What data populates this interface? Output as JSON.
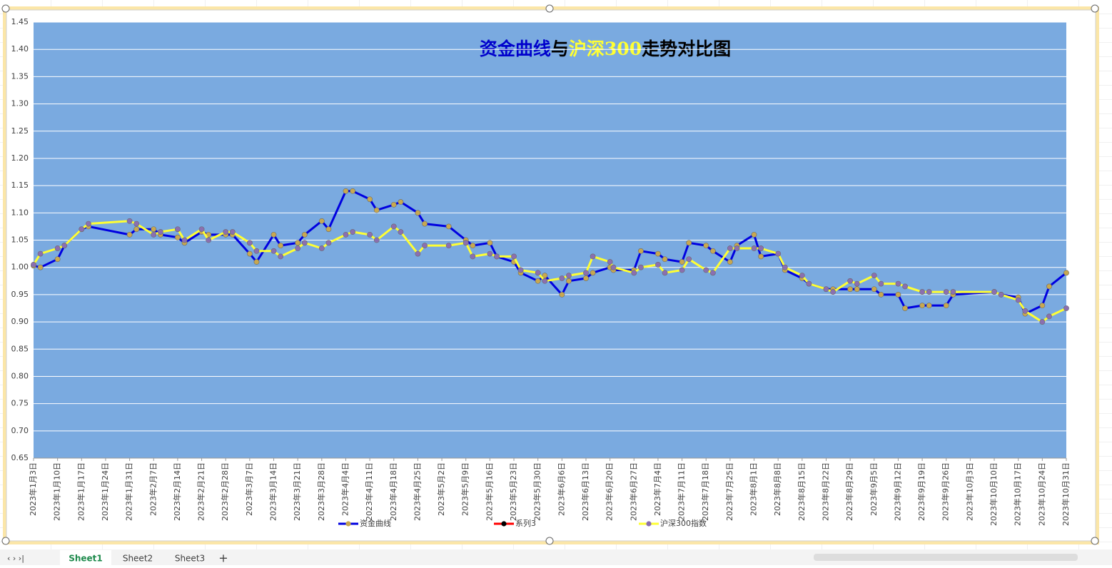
{
  "chart_data": {
    "type": "line",
    "title": [
      "资金曲线",
      "与",
      "沪深300",
      "走势对比图"
    ],
    "title_colors": [
      "#0000cc",
      "#000000",
      "#ffff33",
      "#000000"
    ],
    "x": [
      "2023-01-03",
      "2023-01-05",
      "2023-01-10",
      "2023-01-12",
      "2023-01-17",
      "2023-01-19",
      "2023-01-31",
      "2023-02-02",
      "2023-02-07",
      "2023-02-09",
      "2023-02-14",
      "2023-02-16",
      "2023-02-21",
      "2023-02-23",
      "2023-02-28",
      "2023-03-02",
      "2023-03-07",
      "2023-03-09",
      "2023-03-14",
      "2023-03-16",
      "2023-03-21",
      "2023-03-23",
      "2023-03-28",
      "2023-03-30",
      "2023-04-04",
      "2023-04-06",
      "2023-04-11",
      "2023-04-13",
      "2023-04-18",
      "2023-04-20",
      "2023-04-25",
      "2023-04-27",
      "2023-05-04",
      "2023-05-09",
      "2023-05-11",
      "2023-05-16",
      "2023-05-18",
      "2023-05-23",
      "2023-05-25",
      "2023-05-30",
      "2023-06-01",
      "2023-06-06",
      "2023-06-08",
      "2023-06-13",
      "2023-06-15",
      "2023-06-20",
      "2023-06-21",
      "2023-06-27",
      "2023-06-29",
      "2023-07-04",
      "2023-07-06",
      "2023-07-11",
      "2023-07-13",
      "2023-07-18",
      "2023-07-20",
      "2023-07-25",
      "2023-07-27",
      "2023-08-01",
      "2023-08-03",
      "2023-08-08",
      "2023-08-10",
      "2023-08-15",
      "2023-08-17",
      "2023-08-22",
      "2023-08-24",
      "2023-08-29",
      "2023-08-31",
      "2023-09-05",
      "2023-09-07",
      "2023-09-12",
      "2023-09-14",
      "2023-09-19",
      "2023-09-21",
      "2023-09-26",
      "2023-09-28",
      "2023-10-10",
      "2023-10-12",
      "2023-10-17",
      "2023-10-19",
      "2023-10-24",
      "2023-10-26",
      "2023-10-31"
    ],
    "series": [
      {
        "name": "资金曲线",
        "color": "#0000e0",
        "marker_color": "#c8a850",
        "values": [
          1.003,
          1,
          1.015,
          1.04,
          1.07,
          1.075,
          1.06,
          1.07,
          1.07,
          1.06,
          1.055,
          1.045,
          1.065,
          1.06,
          1.06,
          1.06,
          1.025,
          1.01,
          1.06,
          1.04,
          1.045,
          1.06,
          1.085,
          1.07,
          1.14,
          1.14,
          1.125,
          1.105,
          1.115,
          1.12,
          1.1,
          1.08,
          1.075,
          1.05,
          1.04,
          1.045,
          1.02,
          1.01,
          0.99,
          0.975,
          0.985,
          0.95,
          0.975,
          0.98,
          0.99,
          1,
          0.995,
          0.995,
          1.03,
          1.025,
          1.015,
          1.01,
          1.045,
          1.04,
          1.03,
          1.01,
          1.04,
          1.06,
          1.02,
          1.025,
          0.995,
          0.98,
          0.97,
          0.96,
          0.96,
          0.96,
          0.96,
          0.96,
          0.95,
          0.95,
          0.925,
          0.93,
          0.93,
          0.93,
          0.95,
          0.955,
          0.95,
          0.945,
          0.915,
          0.93,
          0.965,
          0.99
        ]
      },
      {
        "name": "系列3",
        "color": "#ff0000",
        "marker_color": "#000000",
        "values": [
          null,
          null,
          null,
          null,
          null,
          null,
          null,
          null,
          null,
          null,
          null,
          null,
          null,
          null,
          null,
          null,
          null,
          null,
          null,
          null,
          null,
          null,
          null,
          null,
          null,
          null,
          null,
          null,
          null,
          null,
          null,
          null,
          null,
          null,
          null,
          null,
          null,
          null,
          null,
          null,
          null,
          null,
          null,
          null,
          null,
          null,
          null,
          null,
          null,
          null,
          null,
          null,
          null,
          null,
          null,
          null,
          null,
          null,
          null,
          null,
          null,
          null,
          null,
          null,
          null,
          null,
          null,
          null,
          null,
          null,
          null,
          null,
          null,
          null,
          null,
          null,
          null,
          null,
          null,
          null,
          null,
          null
        ]
      },
      {
        "name": "沪深300指数",
        "color": "#ffff33",
        "marker_color": "#8b6fb0",
        "values": [
          1.005,
          1.025,
          1.035,
          1.04,
          1.07,
          1.08,
          1.085,
          1.08,
          1.06,
          1.065,
          1.07,
          1.05,
          1.07,
          1.05,
          1.065,
          1.065,
          1.045,
          1.03,
          1.03,
          1.02,
          1.035,
          1.045,
          1.035,
          1.045,
          1.06,
          1.065,
          1.06,
          1.05,
          1.075,
          1.065,
          1.025,
          1.04,
          1.04,
          1.045,
          1.02,
          1.025,
          1.02,
          1.02,
          0.995,
          0.99,
          0.975,
          0.98,
          0.985,
          0.99,
          1.02,
          1.01,
          1,
          0.99,
          1,
          1.005,
          0.99,
          0.995,
          1.015,
          0.995,
          0.99,
          1.035,
          1.035,
          1.035,
          1.035,
          1.025,
          1,
          0.985,
          0.97,
          0.96,
          0.955,
          0.975,
          0.97,
          0.985,
          0.97,
          0.97,
          0.965,
          0.955,
          0.955,
          0.955,
          0.955,
          0.955,
          0.95,
          0.94,
          0.92,
          0.9,
          0.91,
          0.925
        ]
      }
    ],
    "xlim": [
      "2023-01-03",
      "2023-10-31"
    ],
    "xticks": [
      {
        "value": "2023-01-03",
        "label": "2023年1月3日"
      },
      {
        "value": "2023-01-10",
        "label": "2023年1月10日"
      },
      {
        "value": "2023-01-17",
        "label": "2023年1月17日"
      },
      {
        "value": "2023-01-24",
        "label": "2023年1月24日"
      },
      {
        "value": "2023-01-31",
        "label": "2023年1月31日"
      },
      {
        "value": "2023-02-07",
        "label": "2023年2月7日"
      },
      {
        "value": "2023-02-14",
        "label": "2023年2月14日"
      },
      {
        "value": "2023-02-21",
        "label": "2023年2月21日"
      },
      {
        "value": "2023-02-28",
        "label": "2023年2月28日"
      },
      {
        "value": "2023-03-07",
        "label": "2023年3月7日"
      },
      {
        "value": "2023-03-14",
        "label": "2023年3月14日"
      },
      {
        "value": "2023-03-21",
        "label": "2023年3月21日"
      },
      {
        "value": "2023-03-28",
        "label": "2023年3月28日"
      },
      {
        "value": "2023-04-04",
        "label": "2023年4月4日"
      },
      {
        "value": "2023-04-11",
        "label": "2023年4月11日"
      },
      {
        "value": "2023-04-18",
        "label": "2023年4月18日"
      },
      {
        "value": "2023-04-25",
        "label": "2023年4月25日"
      },
      {
        "value": "2023-05-02",
        "label": "2023年5月2日"
      },
      {
        "value": "2023-05-09",
        "label": "2023年5月9日"
      },
      {
        "value": "2023-05-16",
        "label": "2023年5月16日"
      },
      {
        "value": "2023-05-23",
        "label": "2023年5月23日"
      },
      {
        "value": "2023-05-30",
        "label": "2023年5月30日"
      },
      {
        "value": "2023-06-06",
        "label": "2023年6月6日"
      },
      {
        "value": "2023-06-13",
        "label": "2023年6月13日"
      },
      {
        "value": "2023-06-20",
        "label": "2023年6月20日"
      },
      {
        "value": "2023-06-27",
        "label": "2023年6月27日"
      },
      {
        "value": "2023-07-04",
        "label": "2023年7月4日"
      },
      {
        "value": "2023-07-11",
        "label": "2023年7月11日"
      },
      {
        "value": "2023-07-18",
        "label": "2023年7月18日"
      },
      {
        "value": "2023-07-25",
        "label": "2023年7月25日"
      },
      {
        "value": "2023-08-01",
        "label": "2023年8月1日"
      },
      {
        "value": "2023-08-08",
        "label": "2023年8月8日"
      },
      {
        "value": "2023-08-15",
        "label": "2023年8月15日"
      },
      {
        "value": "2023-08-22",
        "label": "2023年8月22日"
      },
      {
        "value": "2023-08-29",
        "label": "2023年8月29日"
      },
      {
        "value": "2023-09-05",
        "label": "2023年9月5日"
      },
      {
        "value": "2023-09-12",
        "label": "2023年9月12日"
      },
      {
        "value": "2023-09-19",
        "label": "2023年9月19日"
      },
      {
        "value": "2023-09-26",
        "label": "2023年9月26日"
      },
      {
        "value": "2023-10-03",
        "label": "2023年10月3日"
      },
      {
        "value": "2023-10-10",
        "label": "2023年10月10日"
      },
      {
        "value": "2023-10-17",
        "label": "2023年10月17日"
      },
      {
        "value": "2023-10-24",
        "label": "2023年10月24日"
      },
      {
        "value": "2023-10-31",
        "label": "2023年10月31日"
      }
    ],
    "ylim": [
      0.65,
      1.45
    ],
    "yticks": [
      0.65,
      {
        "value": 0.7,
        "label": "0.70"
      },
      0.75,
      {
        "value": 0.8,
        "label": "0.80"
      },
      0.85,
      {
        "value": 0.9,
        "label": "0.90"
      },
      0.95,
      {
        "value": 1,
        "label": "1.00"
      },
      1.05,
      {
        "value": 1.1,
        "label": "1.10"
      },
      1.15,
      {
        "value": 1.2,
        "label": "1.20"
      },
      1.25,
      {
        "value": 1.3,
        "label": "1.30"
      },
      1.35,
      {
        "value": 1.4,
        "label": "1.40"
      },
      1.45
    ],
    "grid": true,
    "plot_background": "#7aaae0",
    "legend": "bottom"
  },
  "sheet_tabs": [
    "Sheet1",
    "Sheet2",
    "Sheet3"
  ]
}
